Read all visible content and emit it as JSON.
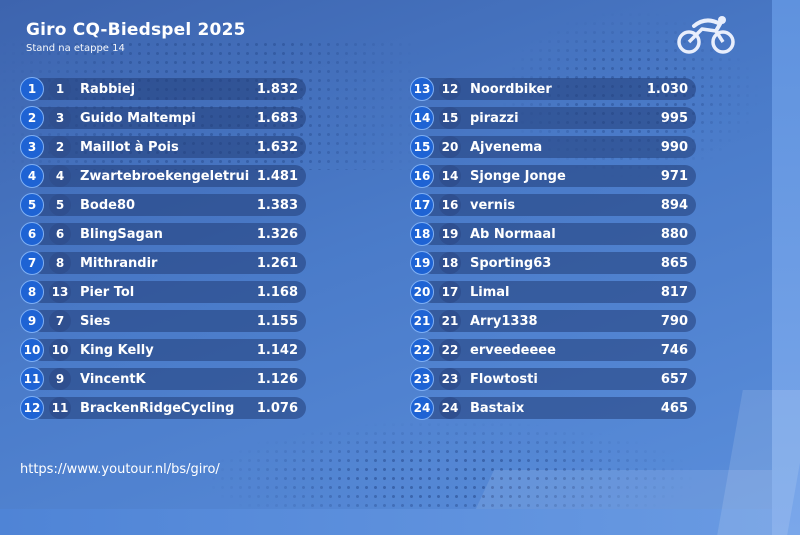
{
  "header": {
    "title": "Giro CQ-Biedspel 2025",
    "subtitle": "Stand na etappe 14"
  },
  "logo_icon": "cyclist-icon",
  "footer": {
    "url": "https://www.youtour.nl/bs/giro/"
  },
  "left_rows": [
    {
      "rank": "1",
      "prev": "1",
      "name": "Rabbiej",
      "points": "1.832"
    },
    {
      "rank": "2",
      "prev": "3",
      "name": "Guido Maltempi",
      "points": "1.683"
    },
    {
      "rank": "3",
      "prev": "2",
      "name": "Maillot à Pois",
      "points": "1.632"
    },
    {
      "rank": "4",
      "prev": "4",
      "name": "Zwartebroekengeletrui",
      "points": "1.481"
    },
    {
      "rank": "5",
      "prev": "5",
      "name": "Bode80",
      "points": "1.383"
    },
    {
      "rank": "6",
      "prev": "6",
      "name": "BlingSagan",
      "points": "1.326"
    },
    {
      "rank": "7",
      "prev": "8",
      "name": "Mithrandir",
      "points": "1.261"
    },
    {
      "rank": "8",
      "prev": "13",
      "name": "Pier Tol",
      "points": "1.168"
    },
    {
      "rank": "9",
      "prev": "7",
      "name": "Sies",
      "points": "1.155"
    },
    {
      "rank": "10",
      "prev": "10",
      "name": "King Kelly",
      "points": "1.142"
    },
    {
      "rank": "11",
      "prev": "9",
      "name": "VincentK",
      "points": "1.126"
    },
    {
      "rank": "12",
      "prev": "11",
      "name": "BrackenRidgeCycling",
      "points": "1.076"
    }
  ],
  "right_rows": [
    {
      "rank": "13",
      "prev": "12",
      "name": "Noordbiker",
      "points": "1.030"
    },
    {
      "rank": "14",
      "prev": "15",
      "name": "pirazzi",
      "points": "995"
    },
    {
      "rank": "15",
      "prev": "20",
      "name": "Ajvenema",
      "points": "990"
    },
    {
      "rank": "16",
      "prev": "14",
      "name": "Sjonge Jonge",
      "points": "971"
    },
    {
      "rank": "17",
      "prev": "16",
      "name": "vernis",
      "points": "894"
    },
    {
      "rank": "18",
      "prev": "19",
      "name": "Ab Normaal",
      "points": "880"
    },
    {
      "rank": "19",
      "prev": "18",
      "name": "Sporting63",
      "points": "865"
    },
    {
      "rank": "20",
      "prev": "17",
      "name": "Limal",
      "points": "817"
    },
    {
      "rank": "21",
      "prev": "21",
      "name": "Arry1338",
      "points": "790"
    },
    {
      "rank": "22",
      "prev": "22",
      "name": "erveedeeee",
      "points": "746"
    },
    {
      "rank": "23",
      "prev": "23",
      "name": "Flowtosti",
      "points": "657"
    },
    {
      "rank": "24",
      "prev": "24",
      "name": "Bastaix",
      "points": "465"
    }
  ],
  "colors": {
    "rank_badge": "#1e63d4",
    "prev_badge": "#2f4f8f",
    "row_bg": "#233e78"
  }
}
